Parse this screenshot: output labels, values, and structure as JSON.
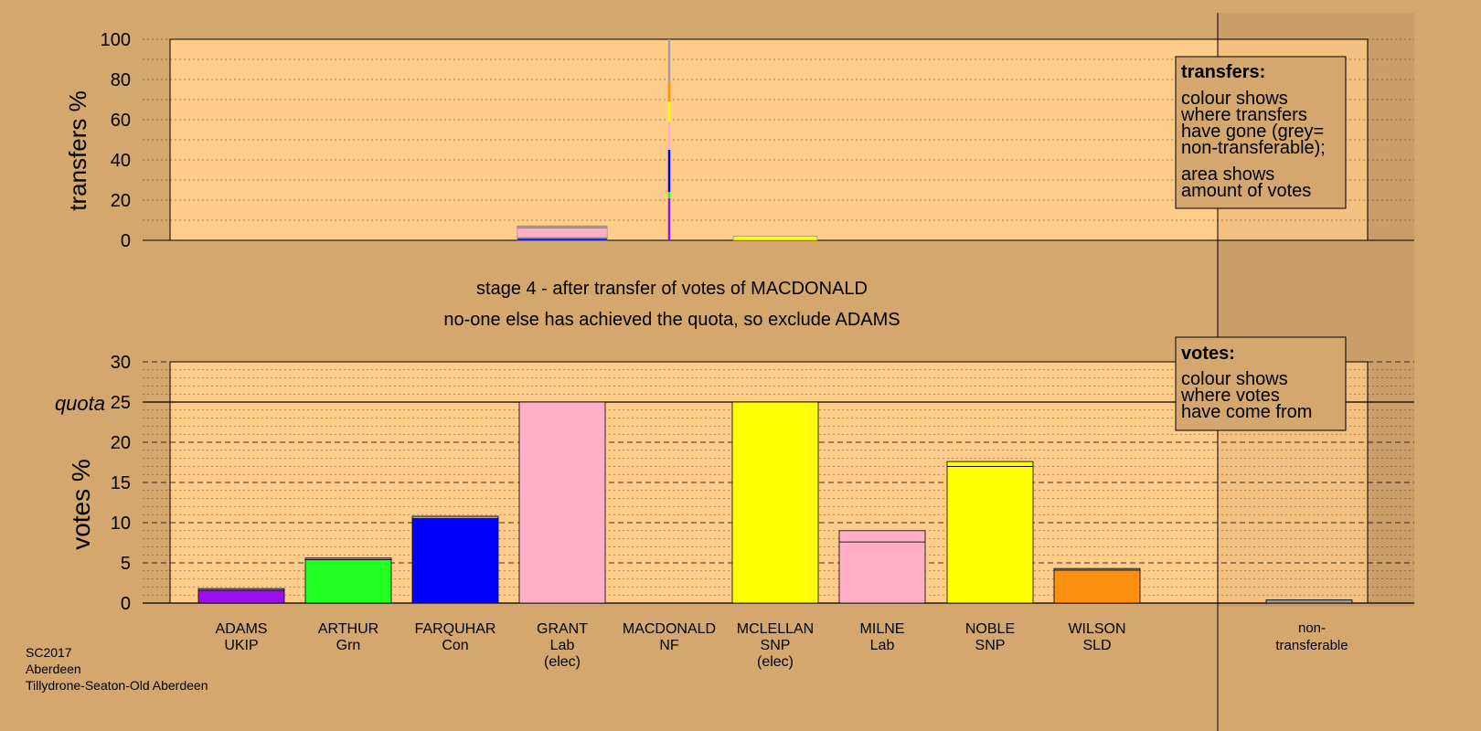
{
  "colors": {
    "background": "#d4a76f",
    "plot_bg": "#ffcc8a",
    "purple": "#9a10e8",
    "green": "#22ff22",
    "blue": "#0000ff",
    "pink": "#ffb0c8",
    "yellow": "#ffff00",
    "orange": "#ff9010",
    "grey": "#a0a0a0"
  },
  "stage_text": {
    "line1": "stage 4 - after transfer of votes of MACDONALD",
    "line2": "no-one else has achieved the quota, so exclude ADAMS"
  },
  "footer": {
    "line1": "SC2017",
    "line2": "Aberdeen",
    "line3": "Tillydrone-Seaton-Old Aberdeen"
  },
  "legends": {
    "transfers": {
      "title": "transfers:",
      "lines1": [
        "colour shows",
        "where transfers",
        "have gone (grey=",
        "non-transferable);"
      ],
      "lines2": [
        "area shows",
        "amount of votes"
      ]
    },
    "votes": {
      "title": "votes:",
      "lines1": [
        "colour shows",
        "where votes",
        "have come from"
      ]
    }
  },
  "chart_data": [
    {
      "type": "bar",
      "ylabel": "transfers %",
      "ylim": [
        0,
        100
      ],
      "yticks": [
        0,
        20,
        40,
        60,
        80,
        100
      ],
      "categories": [
        "ADAMS",
        "ARTHUR",
        "FARQUHAR",
        "GRANT",
        "MACDONALD",
        "MCLELLAN",
        "MILNE",
        "NOBLE",
        "WILSON"
      ],
      "bars": [
        {
          "category": "GRANT",
          "width_pct": 7.5,
          "segments": [
            {
              "color": "blue",
              "value": 0.8
            },
            {
              "color": "grey",
              "value": 0.6
            },
            {
              "color": "pink",
              "value": 4.6
            },
            {
              "color": "grey",
              "value": 1.2
            }
          ]
        },
        {
          "category": "MACDONALD",
          "width_pct": 0.1,
          "segments": [
            {
              "color": "purple",
              "value": 21
            },
            {
              "color": "green",
              "value": 3
            },
            {
              "color": "blue",
              "value": 21
            },
            {
              "color": "pink",
              "value": 14
            },
            {
              "color": "yellow",
              "value": 10
            },
            {
              "color": "orange",
              "value": 10
            },
            {
              "color": "grey",
              "value": 21
            }
          ]
        },
        {
          "category": "MCLELLAN",
          "width_pct": 7.0,
          "segments": [
            {
              "color": "yellow",
              "value": 2.0
            }
          ]
        }
      ]
    },
    {
      "type": "bar",
      "ylabel": "votes %",
      "ylim": [
        0,
        30
      ],
      "yticks": [
        0,
        5,
        10,
        15,
        20,
        25,
        30
      ],
      "quota": {
        "label": "quota",
        "value": 25
      },
      "candidates": [
        {
          "name": "ADAMS",
          "party": "UKIP",
          "note": "",
          "segments": [
            {
              "color": "purple",
              "value": 1.6
            },
            {
              "color": "grey",
              "value": 0.2
            }
          ]
        },
        {
          "name": "ARTHUR",
          "party": "Grn",
          "note": "",
          "segments": [
            {
              "color": "green",
              "value": 5.4
            },
            {
              "color": "grey",
              "value": 0.2
            }
          ]
        },
        {
          "name": "FARQUHAR",
          "party": "Con",
          "note": "",
          "segments": [
            {
              "color": "blue",
              "value": 10.5
            },
            {
              "color": "grey",
              "value": 0.3
            }
          ]
        },
        {
          "name": "GRANT",
          "party": "Lab",
          "note": "(elec)",
          "segments": [
            {
              "color": "pink",
              "value": 25.0
            }
          ]
        },
        {
          "name": "MACDONALD",
          "party": "NF",
          "note": "",
          "segments": []
        },
        {
          "name": "MCLELLAN",
          "party": "SNP",
          "note": "(elec)",
          "segments": [
            {
              "color": "yellow",
              "value": 25.0
            }
          ]
        },
        {
          "name": "MILNE",
          "party": "Lab",
          "note": "",
          "segments": [
            {
              "color": "pink",
              "value": 7.6
            },
            {
              "color": "pink",
              "value": 1.4
            }
          ]
        },
        {
          "name": "NOBLE",
          "party": "SNP",
          "note": "",
          "segments": [
            {
              "color": "yellow",
              "value": 17.0
            },
            {
              "color": "yellow",
              "value": 0.6
            }
          ]
        },
        {
          "name": "WILSON",
          "party": "SLD",
          "note": "",
          "segments": [
            {
              "color": "orange",
              "value": 4.1
            },
            {
              "color": "grey",
              "value": 0.2
            }
          ]
        }
      ],
      "nontransferable": {
        "label1": "non-",
        "label2": "transferable",
        "value": 0.4
      }
    }
  ]
}
